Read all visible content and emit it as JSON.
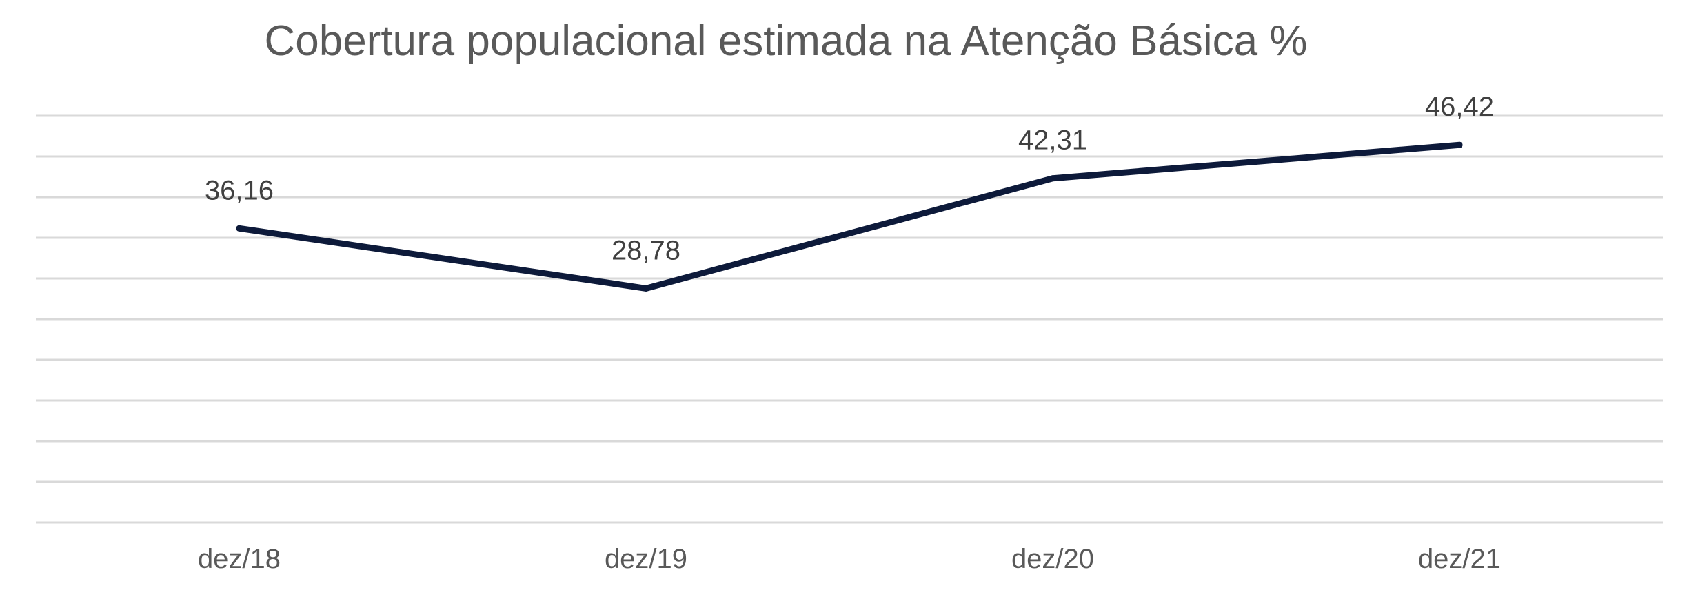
{
  "chart_data": {
    "type": "line",
    "title": "Cobertura populacional estimada na Atenção Básica %",
    "xlabel": "",
    "ylabel": "",
    "categories": [
      "dez/18",
      "dez/19",
      "dez/20",
      "dez/21"
    ],
    "series": [
      {
        "values": [
          36.16,
          28.78,
          42.31,
          46.42
        ],
        "labels": [
          "36,16",
          "28,78",
          "42,31",
          "46,42"
        ],
        "color": "#0d1a3a"
      }
    ],
    "ylim": [
      0,
      50
    ],
    "grid": true,
    "legend": "none",
    "grid_color": "#d9d9d9"
  }
}
